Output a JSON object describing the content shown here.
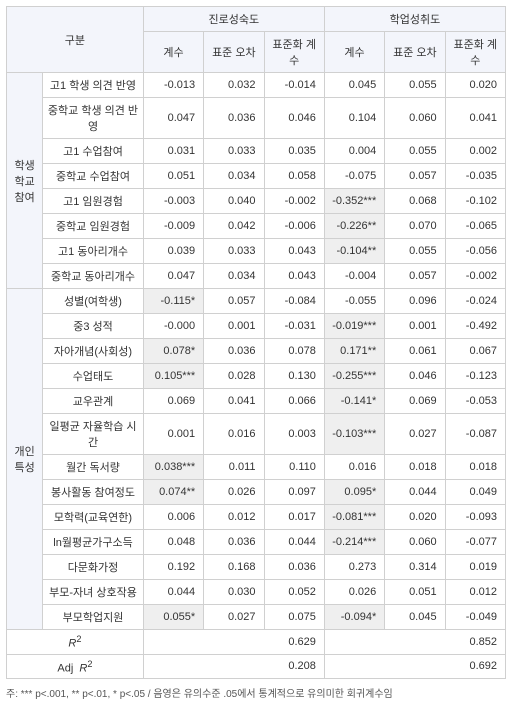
{
  "headers": {
    "gubun": "구분",
    "col1_label": "진로성숙도",
    "col2_label": "학업성취도",
    "coef": "계수",
    "se": "표준\n오차",
    "stdcoef": "표준화\n계수"
  },
  "groups": [
    {
      "name": "학생\n학교\n참여",
      "rows": [
        {
          "label": "고1 학생 의견 반영",
          "a": "-0.013",
          "b": "0.032",
          "c": "-0.014",
          "d": "0.045",
          "e": "0.055",
          "f": "0.020"
        },
        {
          "label": "중학교 학생 의견 반영",
          "a": "0.047",
          "b": "0.036",
          "c": "0.046",
          "d": "0.104",
          "e": "0.060",
          "f": "0.041"
        },
        {
          "label": "고1 수업참여",
          "a": "0.031",
          "b": "0.033",
          "c": "0.035",
          "d": "0.004",
          "e": "0.055",
          "f": "0.002"
        },
        {
          "label": "중학교 수업참여",
          "a": "0.051",
          "b": "0.034",
          "c": "0.058",
          "d": "-0.075",
          "e": "0.057",
          "f": "-0.035"
        },
        {
          "label": "고1 임원경험",
          "a": "-0.003",
          "b": "0.040",
          "c": "-0.002",
          "d": "-0.352***",
          "ds": true,
          "e": "0.068",
          "f": "-0.102"
        },
        {
          "label": "중학교 임원경험",
          "a": "-0.009",
          "b": "0.042",
          "c": "-0.006",
          "d": "-0.226**",
          "ds": true,
          "e": "0.070",
          "f": "-0.065"
        },
        {
          "label": "고1 동아리개수",
          "a": "0.039",
          "b": "0.033",
          "c": "0.043",
          "d": "-0.104**",
          "ds": true,
          "e": "0.055",
          "f": "-0.056"
        },
        {
          "label": "중학교 동아리개수",
          "a": "0.047",
          "b": "0.034",
          "c": "0.043",
          "d": "-0.004",
          "e": "0.057",
          "f": "-0.002"
        }
      ]
    },
    {
      "name": "개인\n특성",
      "rows": [
        {
          "label": "성별(여학생)",
          "a": "-0.115*",
          "as": true,
          "b": "0.057",
          "c": "-0.084",
          "d": "-0.055",
          "e": "0.096",
          "f": "-0.024"
        },
        {
          "label": "중3 성적",
          "a": "-0.000",
          "b": "0.001",
          "c": "-0.031",
          "d": "-0.019***",
          "ds": true,
          "e": "0.001",
          "f": "-0.492"
        },
        {
          "label": "자아개념(사회성)",
          "a": "0.078*",
          "as": true,
          "b": "0.036",
          "c": "0.078",
          "d": "0.171**",
          "ds": true,
          "e": "0.061",
          "f": "0.067"
        },
        {
          "label": "수업태도",
          "a": "0.105***",
          "as": true,
          "b": "0.028",
          "c": "0.130",
          "d": "-0.255***",
          "ds": true,
          "e": "0.046",
          "f": "-0.123"
        },
        {
          "label": "교우관계",
          "a": "0.069",
          "b": "0.041",
          "c": "0.066",
          "d": "-0.141*",
          "ds": true,
          "e": "0.069",
          "f": "-0.053"
        },
        {
          "label": "일평균 자율학습 시간",
          "a": "0.001",
          "b": "0.016",
          "c": "0.003",
          "d": "-0.103***",
          "ds": true,
          "e": "0.027",
          "f": "-0.087"
        },
        {
          "label": "월간 독서량",
          "a": "0.038***",
          "as": true,
          "b": "0.011",
          "c": "0.110",
          "d": "0.016",
          "e": "0.018",
          "f": "0.018"
        },
        {
          "label": "봉사활동 참여정도",
          "a": "0.074**",
          "as": true,
          "b": "0.026",
          "c": "0.097",
          "d": "0.095*",
          "ds": true,
          "e": "0.044",
          "f": "0.049"
        },
        {
          "label": "모학력(교육연한)",
          "a": "0.006",
          "b": "0.012",
          "c": "0.017",
          "d": "-0.081***",
          "ds": true,
          "e": "0.020",
          "f": "-0.093"
        },
        {
          "label": "ln월평균가구소득",
          "a": "0.048",
          "b": "0.036",
          "c": "0.044",
          "d": "-0.214***",
          "ds": true,
          "e": "0.060",
          "f": "-0.077"
        },
        {
          "label": "다문화가정",
          "a": "0.192",
          "b": "0.168",
          "c": "0.036",
          "d": "0.273",
          "e": "0.314",
          "f": "0.019"
        },
        {
          "label": "부모-자녀 상호작용",
          "a": "0.044",
          "b": "0.030",
          "c": "0.052",
          "d": "0.026",
          "e": "0.051",
          "f": "0.012"
        },
        {
          "label": "부모학업지원",
          "a": "0.055*",
          "as": true,
          "b": "0.027",
          "c": "0.075",
          "d": "-0.094*",
          "ds": true,
          "e": "0.045",
          "f": "-0.049"
        }
      ]
    }
  ],
  "footer": {
    "r2": {
      "label": "R²",
      "v1": "0.629",
      "v2": "0.852"
    },
    "adjr2": {
      "label": "Adj  R²",
      "v1": "0.208",
      "v2": "0.692"
    }
  },
  "note": "주: *** p<.001, ** p<.01, * p<.05  /  음영은 유의수준 .05에서 통계적으로 유의미한 회귀계수임"
}
